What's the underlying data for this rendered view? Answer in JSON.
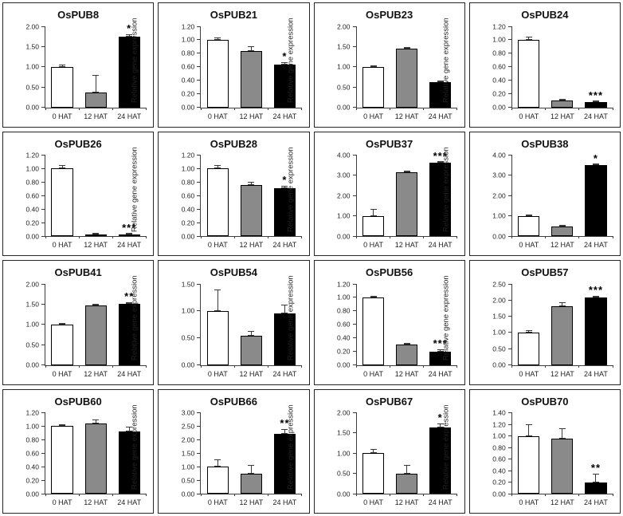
{
  "figure": {
    "ylabel": "Relative gene expression",
    "categories": [
      "0 HAT",
      "12 HAT",
      "24 HAT"
    ],
    "bar_colors": [
      "#ffffff",
      "#8a8a8a",
      "#000000"
    ],
    "axis_color": "#3d3d3d"
  },
  "chart_data": [
    {
      "type": "bar",
      "title": "OsPUB8",
      "categories": [
        "0 HAT",
        "12 HAT",
        "24 HAT"
      ],
      "values": [
        1.0,
        0.37,
        1.75
      ],
      "errors": [
        0.06,
        0.43,
        0.05
      ],
      "significance": [
        "",
        "",
        "*"
      ],
      "ylabel": "Relative gene expression",
      "ylim": [
        0,
        2.0
      ],
      "ystep": 0.5
    },
    {
      "type": "bar",
      "title": "OsPUB21",
      "categories": [
        "0 HAT",
        "12 HAT",
        "24 HAT"
      ],
      "values": [
        1.0,
        0.83,
        0.63
      ],
      "errors": [
        0.04,
        0.08,
        0.04
      ],
      "significance": [
        "",
        "",
        "*"
      ],
      "ylabel": "Relative gene expression",
      "ylim": [
        0,
        1.2
      ],
      "ystep": 0.2
    },
    {
      "type": "bar",
      "title": "OsPUB23",
      "categories": [
        "0 HAT",
        "12 HAT",
        "24 HAT"
      ],
      "values": [
        1.0,
        1.45,
        0.62
      ],
      "errors": [
        0.02,
        0.02,
        0.02
      ],
      "significance": [
        "",
        "",
        ""
      ],
      "ylabel": "Relative gene expression",
      "ylim": [
        0,
        2.0
      ],
      "ystep": 0.5
    },
    {
      "type": "bar",
      "title": "OsPUB24",
      "categories": [
        "0 HAT",
        "12 HAT",
        "24 HAT"
      ],
      "values": [
        1.0,
        0.1,
        0.08
      ],
      "errors": [
        0.05,
        0.01,
        0.01
      ],
      "significance": [
        "",
        "",
        "***"
      ],
      "ylabel": "Relative gene expression",
      "ylim": [
        0,
        1.2
      ],
      "ystep": 0.2
    },
    {
      "type": "bar",
      "title": "OsPUB26",
      "categories": [
        "0 HAT",
        "12 HAT",
        "24 HAT"
      ],
      "values": [
        1.0,
        0.02,
        0.02
      ],
      "errors": [
        0.05,
        0.01,
        0.01
      ],
      "significance": [
        "",
        "",
        "***"
      ],
      "ylabel": "Relative gene expression",
      "ylim": [
        0,
        1.2
      ],
      "ystep": 0.2
    },
    {
      "type": "bar",
      "title": "OsPUB28",
      "categories": [
        "0 HAT",
        "12 HAT",
        "24 HAT"
      ],
      "values": [
        1.0,
        0.76,
        0.71
      ],
      "errors": [
        0.05,
        0.05,
        0.04
      ],
      "significance": [
        "",
        "",
        "*"
      ],
      "ylabel": "Relative gene expression",
      "ylim": [
        0,
        1.2
      ],
      "ystep": 0.2
    },
    {
      "type": "bar",
      "title": "OsPUB37",
      "categories": [
        "0 HAT",
        "12 HAT",
        "24 HAT"
      ],
      "values": [
        1.0,
        3.15,
        3.62
      ],
      "errors": [
        0.35,
        0.06,
        0.06
      ],
      "significance": [
        "",
        "",
        "***"
      ],
      "ylabel": "Relative gene expression",
      "ylim": [
        0,
        4.0
      ],
      "ystep": 1.0
    },
    {
      "type": "bar",
      "title": "OsPUB38",
      "categories": [
        "0 HAT",
        "12 HAT",
        "24 HAT"
      ],
      "values": [
        1.0,
        0.47,
        3.5
      ],
      "errors": [
        0.02,
        0.04,
        0.05
      ],
      "significance": [
        "",
        "",
        "*"
      ],
      "ylabel": "Relative gene expression",
      "ylim": [
        0,
        4.0
      ],
      "ystep": 1.0
    },
    {
      "type": "bar",
      "title": "OsPUB41",
      "categories": [
        "0 HAT",
        "12 HAT",
        "24 HAT"
      ],
      "values": [
        1.0,
        1.47,
        1.5
      ],
      "errors": [
        0.03,
        0.02,
        0.05
      ],
      "significance": [
        "",
        "",
        "**"
      ],
      "ylabel": "Relative gene expression",
      "ylim": [
        0,
        2.0
      ],
      "ystep": 0.5
    },
    {
      "type": "bar",
      "title": "OsPUB54",
      "categories": [
        "0 HAT",
        "12 HAT",
        "24 HAT"
      ],
      "values": [
        1.0,
        0.54,
        0.95
      ],
      "errors": [
        0.4,
        0.09,
        0.16
      ],
      "significance": [
        "",
        "",
        ""
      ],
      "ylabel": "Relative gene expression",
      "ylim": [
        0,
        1.5
      ],
      "ystep": 0.5
    },
    {
      "type": "bar",
      "title": "OsPUB56",
      "categories": [
        "0 HAT",
        "12 HAT",
        "24 HAT"
      ],
      "values": [
        1.0,
        0.3,
        0.19
      ],
      "errors": [
        0.01,
        0.02,
        0.04
      ],
      "significance": [
        "",
        "",
        "***"
      ],
      "ylabel": "Relative gene expression",
      "ylim": [
        0,
        1.2
      ],
      "ystep": 0.2
    },
    {
      "type": "bar",
      "title": "OsPUB57",
      "categories": [
        "0 HAT",
        "12 HAT",
        "24 HAT"
      ],
      "values": [
        1.0,
        1.8,
        2.08
      ],
      "errors": [
        0.08,
        0.13,
        0.06
      ],
      "significance": [
        "",
        "",
        "***"
      ],
      "ylabel": "Relative gene expression",
      "ylim": [
        0,
        2.5
      ],
      "ystep": 0.5
    },
    {
      "type": "bar",
      "title": "OsPUB60",
      "categories": [
        "0 HAT",
        "12 HAT",
        "24 HAT"
      ],
      "values": [
        1.0,
        1.04,
        0.92
      ],
      "errors": [
        0.01,
        0.06,
        0.07
      ],
      "significance": [
        "",
        "",
        ""
      ],
      "ylabel": "Relative gene expression",
      "ylim": [
        0,
        1.2
      ],
      "ystep": 0.2
    },
    {
      "type": "bar",
      "title": "OsPUB66",
      "categories": [
        "0 HAT",
        "12 HAT",
        "24 HAT"
      ],
      "values": [
        1.0,
        0.74,
        2.22
      ],
      "errors": [
        0.26,
        0.31,
        0.17
      ],
      "significance": [
        "",
        "",
        "**"
      ],
      "ylabel": "Relative gene expression",
      "ylim": [
        0,
        3.0
      ],
      "ystep": 0.5
    },
    {
      "type": "bar",
      "title": "OsPUB67",
      "categories": [
        "0 HAT",
        "12 HAT",
        "24 HAT"
      ],
      "values": [
        1.0,
        0.5,
        1.63
      ],
      "errors": [
        0.11,
        0.21,
        0.11
      ],
      "significance": [
        "",
        "",
        "*"
      ],
      "ylabel": "Relative gene expression",
      "ylim": [
        0,
        2.0
      ],
      "ystep": 0.5
    },
    {
      "type": "bar",
      "title": "OsPUB70",
      "categories": [
        "0 HAT",
        "12 HAT",
        "24 HAT"
      ],
      "values": [
        1.0,
        0.95,
        0.2
      ],
      "errors": [
        0.2,
        0.18,
        0.15
      ],
      "significance": [
        "",
        "",
        "**"
      ],
      "ylabel": "Relative gene expression",
      "ylim": [
        0,
        1.4
      ],
      "ystep": 0.2
    }
  ]
}
